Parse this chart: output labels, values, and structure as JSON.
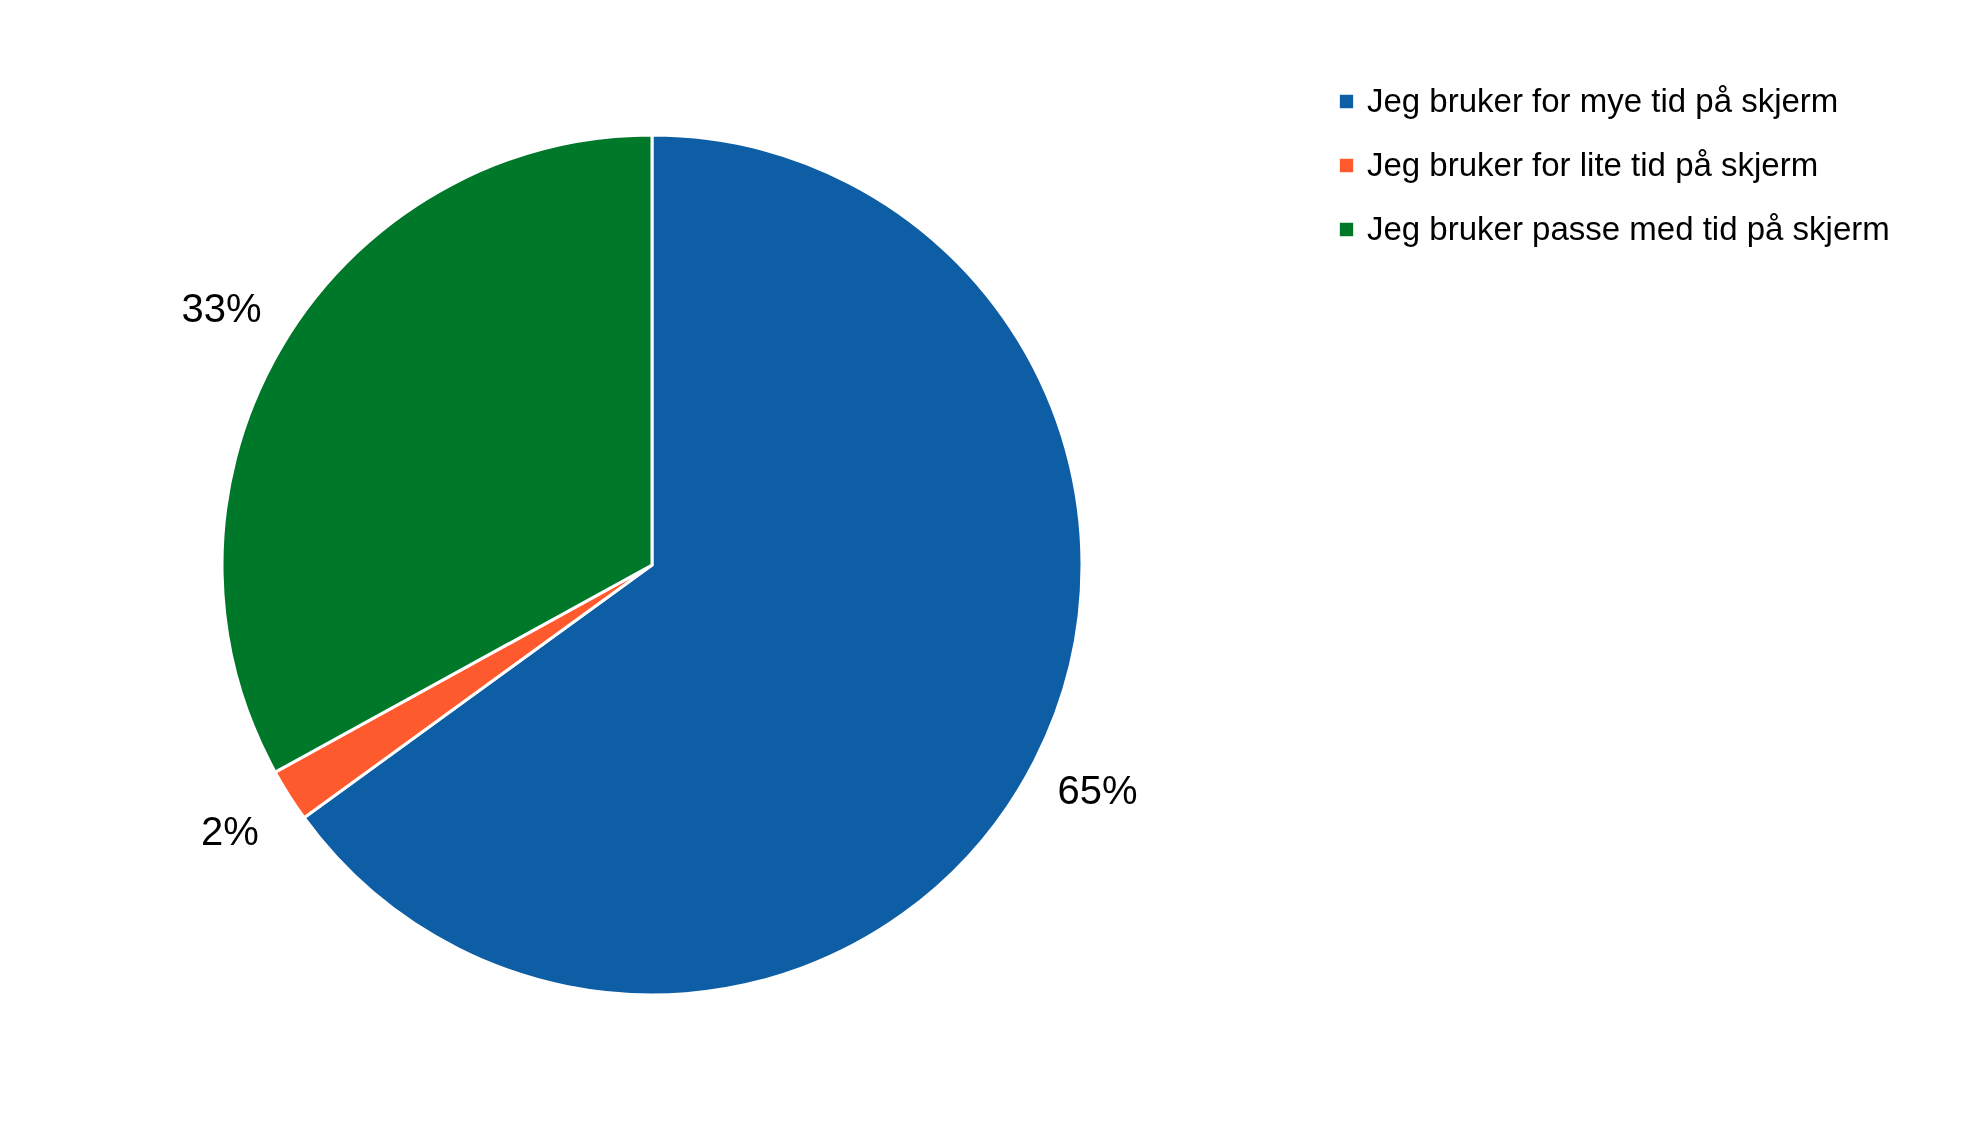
{
  "chart_data": {
    "type": "pie",
    "categories": [
      "Jeg bruker for mye tid på skjerm",
      "Jeg bruker for lite tid på skjerm",
      "Jeg bruker passe med tid på skjerm"
    ],
    "values": [
      65,
      2,
      33
    ],
    "colors": [
      "#0e5ea5",
      "#ff5a2d",
      "#00782a"
    ],
    "value_labels": [
      "65%",
      "2%",
      "33%"
    ],
    "legend": "top right"
  }
}
